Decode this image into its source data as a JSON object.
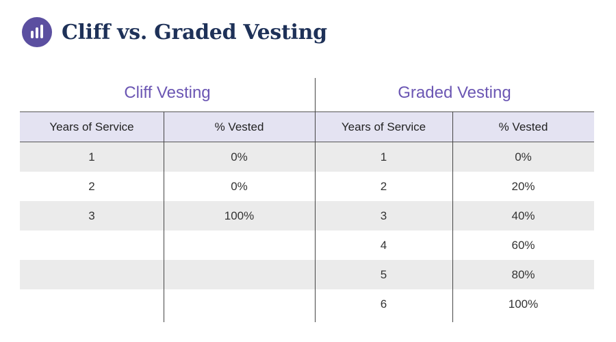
{
  "header": {
    "title": "Cliff vs. Graded Vesting",
    "logo_icon": "bar-chart-logo-icon",
    "logo_color": "#5b4fa0"
  },
  "panels": {
    "cliff_title": "Cliff Vesting",
    "graded_title": "Graded Vesting"
  },
  "table": {
    "headers": [
      "Years of Service",
      "% Vested",
      "Years of Service",
      "% Vested"
    ],
    "rows": [
      {
        "cliff_years": "1",
        "cliff_pct": "0%",
        "graded_years": "1",
        "graded_pct": "0%"
      },
      {
        "cliff_years": "2",
        "cliff_pct": "0%",
        "graded_years": "2",
        "graded_pct": "20%"
      },
      {
        "cliff_years": "3",
        "cliff_pct": "100%",
        "graded_years": "3",
        "graded_pct": "40%"
      },
      {
        "cliff_years": "",
        "cliff_pct": "",
        "graded_years": "4",
        "graded_pct": "60%"
      },
      {
        "cliff_years": "",
        "cliff_pct": "",
        "graded_years": "5",
        "graded_pct": "80%"
      },
      {
        "cliff_years": "",
        "cliff_pct": "",
        "graded_years": "6",
        "graded_pct": "100%"
      }
    ]
  },
  "colors": {
    "accent": "#6b56b3",
    "title": "#1e3158",
    "header_bg": "#e4e3f2",
    "row_shade": "#ebebeb"
  }
}
